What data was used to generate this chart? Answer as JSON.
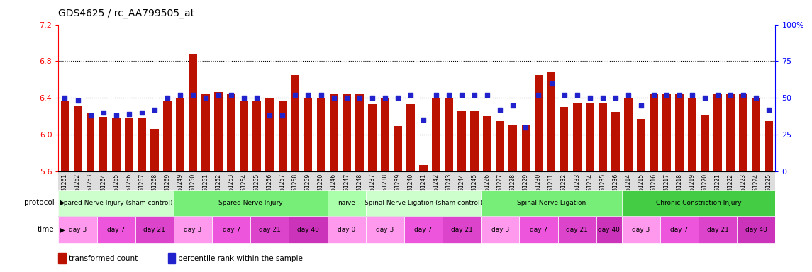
{
  "title": "GDS4625 / rc_AA799505_at",
  "samples": [
    "GSM761261",
    "GSM761262",
    "GSM761263",
    "GSM761264",
    "GSM761265",
    "GSM761266",
    "GSM761267",
    "GSM761268",
    "GSM761269",
    "GSM761249",
    "GSM761250",
    "GSM761251",
    "GSM761252",
    "GSM761253",
    "GSM761254",
    "GSM761255",
    "GSM761256",
    "GSM761257",
    "GSM761258",
    "GSM761259",
    "GSM761260",
    "GSM761246",
    "GSM761247",
    "GSM761248",
    "GSM761237",
    "GSM761238",
    "GSM761239",
    "GSM761240",
    "GSM761241",
    "GSM761242",
    "GSM761243",
    "GSM761244",
    "GSM761245",
    "GSM761226",
    "GSM761227",
    "GSM761228",
    "GSM761229",
    "GSM761230",
    "GSM761231",
    "GSM761232",
    "GSM761233",
    "GSM761234",
    "GSM761235",
    "GSM761236",
    "GSM761214",
    "GSM761215",
    "GSM761216",
    "GSM761217",
    "GSM761218",
    "GSM761219",
    "GSM761220",
    "GSM761221",
    "GSM761222",
    "GSM761223",
    "GSM761224",
    "GSM761225"
  ],
  "bar_values": [
    6.37,
    6.32,
    6.23,
    6.19,
    6.18,
    6.18,
    6.18,
    6.06,
    6.37,
    6.4,
    6.88,
    6.44,
    6.46,
    6.44,
    6.37,
    6.37,
    6.4,
    6.36,
    6.65,
    6.4,
    6.4,
    6.44,
    6.44,
    6.44,
    6.33,
    6.4,
    6.09,
    6.33,
    5.67,
    6.4,
    6.4,
    6.26,
    6.26,
    6.2,
    6.15,
    6.1,
    6.1,
    6.65,
    6.68,
    6.3,
    6.35,
    6.35,
    6.35,
    6.25,
    6.4,
    6.17,
    6.44,
    6.44,
    6.44,
    6.4,
    6.22,
    6.44,
    6.44,
    6.44,
    6.4,
    6.15
  ],
  "dot_values": [
    50,
    48,
    38,
    40,
    38,
    39,
    40,
    42,
    50,
    52,
    52,
    50,
    52,
    52,
    50,
    50,
    38,
    38,
    52,
    52,
    52,
    50,
    50,
    50,
    50,
    50,
    50,
    52,
    35,
    52,
    52,
    52,
    52,
    52,
    42,
    45,
    30,
    52,
    60,
    52,
    52,
    50,
    50,
    50,
    52,
    45,
    52,
    52,
    52,
    52,
    50,
    52,
    52,
    52,
    50,
    42
  ],
  "ylim_left": [
    5.6,
    7.2
  ],
  "ylim_right": [
    0,
    100
  ],
  "yticks_left": [
    5.6,
    6.0,
    6.4,
    6.8,
    7.2
  ],
  "yticks_right": [
    0,
    25,
    50,
    75,
    100
  ],
  "ytick_labels_right": [
    "0",
    "25",
    "50",
    "75",
    "100%"
  ],
  "hlines": [
    6.0,
    6.4,
    6.8
  ],
  "bar_color": "#bb1100",
  "dot_color": "#2222cc",
  "bg_color": "#ffffff",
  "protocol_groups": [
    {
      "label": "Spared Nerve Injury (sham control)",
      "start": 0,
      "end": 8,
      "color": "#ccffcc"
    },
    {
      "label": "Spared Nerve Injury",
      "start": 9,
      "end": 20,
      "color": "#77ee77"
    },
    {
      "label": "naive",
      "start": 21,
      "end": 23,
      "color": "#aaffaa"
    },
    {
      "label": "Spinal Nerve Ligation (sham control)",
      "start": 24,
      "end": 32,
      "color": "#ccffcc"
    },
    {
      "label": "Spinal Nerve Ligation",
      "start": 33,
      "end": 43,
      "color": "#77ee77"
    },
    {
      "label": "Chronic Constriction Injury",
      "start": 44,
      "end": 55,
      "color": "#44cc44"
    }
  ],
  "time_groups": [
    {
      "label": "day 3",
      "start": 0,
      "end": 2,
      "color": "#ff99ee"
    },
    {
      "label": "day 7",
      "start": 3,
      "end": 5,
      "color": "#ee55dd"
    },
    {
      "label": "day 21",
      "start": 6,
      "end": 8,
      "color": "#dd44cc"
    },
    {
      "label": "day 3",
      "start": 9,
      "end": 11,
      "color": "#ff99ee"
    },
    {
      "label": "day 7",
      "start": 12,
      "end": 14,
      "color": "#ee55dd"
    },
    {
      "label": "day 21",
      "start": 15,
      "end": 17,
      "color": "#dd44cc"
    },
    {
      "label": "day 40",
      "start": 18,
      "end": 20,
      "color": "#cc33bb"
    },
    {
      "label": "day 0",
      "start": 21,
      "end": 23,
      "color": "#ff99ee"
    },
    {
      "label": "day 3",
      "start": 24,
      "end": 26,
      "color": "#ff99ee"
    },
    {
      "label": "day 7",
      "start": 27,
      "end": 29,
      "color": "#ee55dd"
    },
    {
      "label": "day 21",
      "start": 30,
      "end": 32,
      "color": "#dd44cc"
    },
    {
      "label": "day 3",
      "start": 33,
      "end": 35,
      "color": "#ff99ee"
    },
    {
      "label": "day 7",
      "start": 36,
      "end": 38,
      "color": "#ee55dd"
    },
    {
      "label": "day 21",
      "start": 39,
      "end": 41,
      "color": "#dd44cc"
    },
    {
      "label": "day 40",
      "start": 42,
      "end": 43,
      "color": "#cc33bb"
    },
    {
      "label": "day 3",
      "start": 44,
      "end": 46,
      "color": "#ff99ee"
    },
    {
      "label": "day 7",
      "start": 47,
      "end": 49,
      "color": "#ee55dd"
    },
    {
      "label": "day 21",
      "start": 50,
      "end": 52,
      "color": "#dd44cc"
    },
    {
      "label": "day 40",
      "start": 53,
      "end": 55,
      "color": "#cc33bb"
    }
  ],
  "legend_items": [
    {
      "label": "transformed count",
      "color": "#bb1100"
    },
    {
      "label": "percentile rank within the sample",
      "color": "#2222cc"
    }
  ],
  "xticklabel_bg": "#dddddd",
  "xticklabel_fontsize": 5.5,
  "bar_width": 0.65
}
